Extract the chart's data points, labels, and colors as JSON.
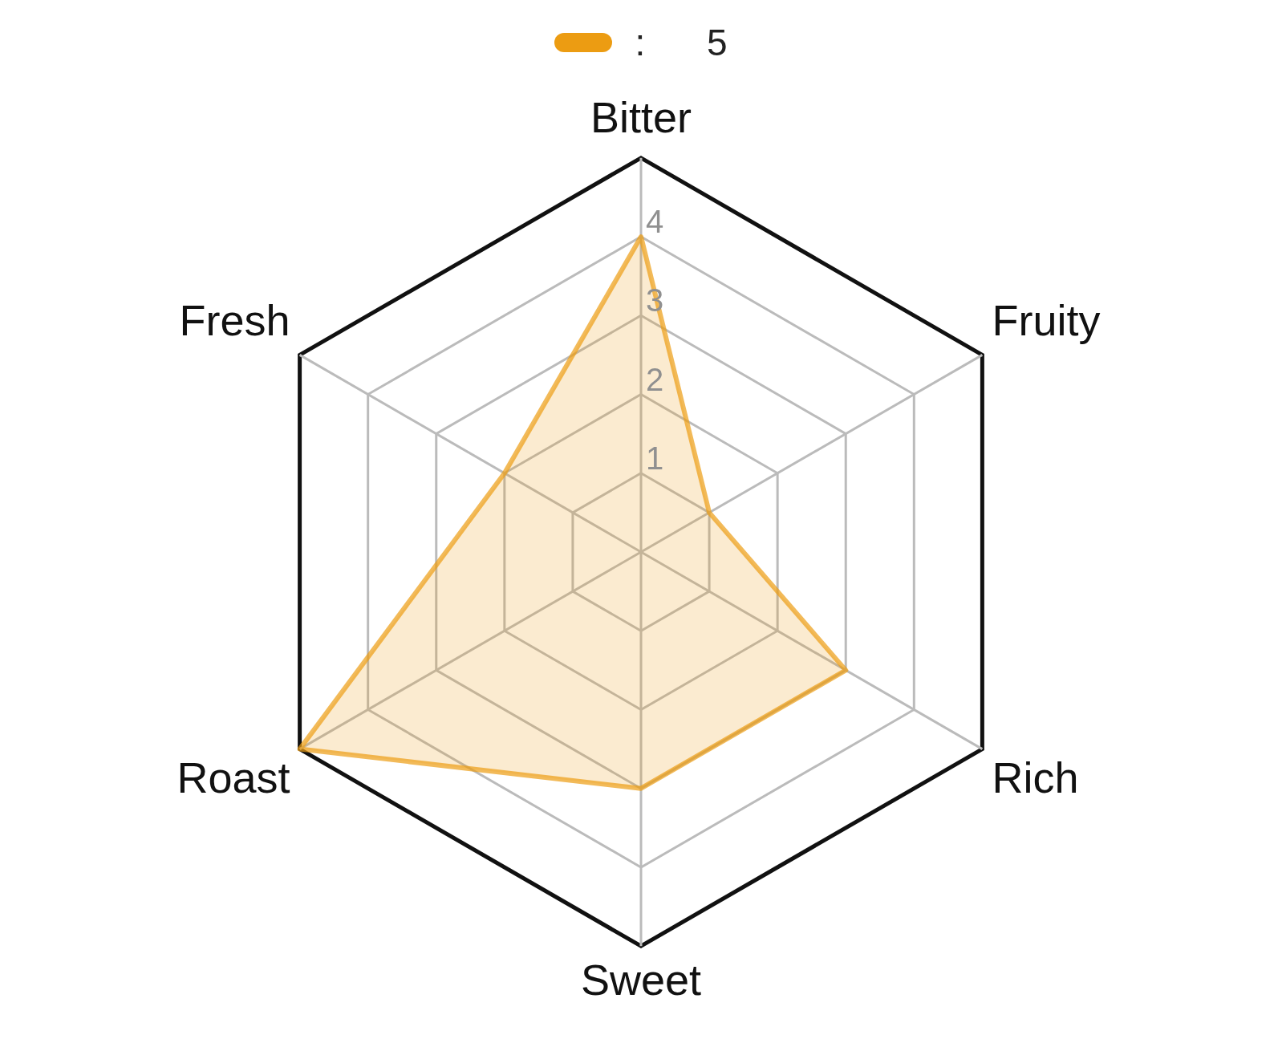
{
  "chart_data": {
    "type": "radar",
    "categories": [
      "Bitter",
      "Fruity",
      "Rich",
      "Sweet",
      "Roast",
      "Fresh"
    ],
    "series": [
      {
        "name": ":      5",
        "color": "#ec9c12",
        "values": [
          4,
          1,
          3,
          3,
          5,
          2
        ]
      }
    ],
    "ylim": [
      0,
      5
    ],
    "yticks": [
      1,
      2,
      3,
      4
    ],
    "grid": true,
    "legend": "top",
    "marker": "none"
  }
}
